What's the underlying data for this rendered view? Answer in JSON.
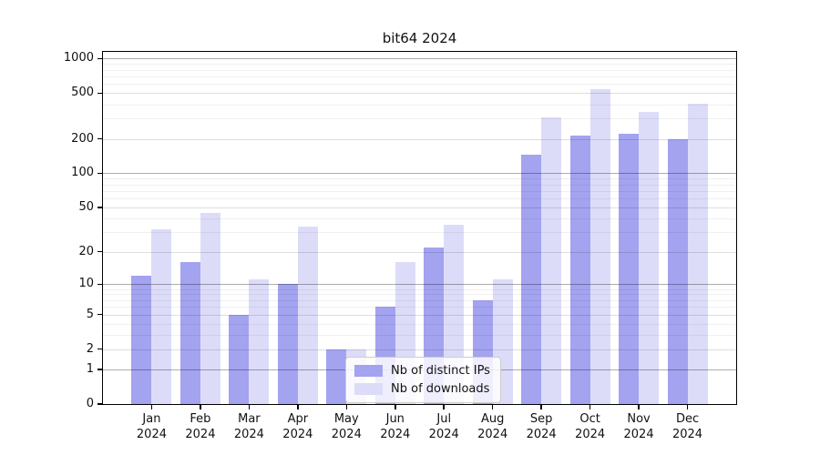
{
  "chart_data": {
    "type": "bar",
    "title": "bit64 2024",
    "categories": [
      "Jan 2024",
      "Feb 2024",
      "Mar 2024",
      "Apr 2024",
      "May 2024",
      "Jun 2024",
      "Jul 2024",
      "Aug 2024",
      "Sep 2024",
      "Oct 2024",
      "Nov 2024",
      "Dec 2024"
    ],
    "series": [
      {
        "name": "Nb of distinct IPs",
        "color": "#a3a3f0",
        "values": [
          12,
          16,
          5,
          10,
          2,
          6,
          22,
          7,
          146,
          215,
          221,
          200
        ]
      },
      {
        "name": "Nb of downloads",
        "color": "#dcdcf9",
        "values": [
          32,
          45,
          11,
          34,
          2,
          16,
          35,
          11,
          310,
          540,
          346,
          405
        ]
      }
    ],
    "xlabel": "",
    "ylabel": "",
    "yscale": "log1p",
    "ylim": [
      0,
      1250
    ],
    "yticks": [
      0,
      1,
      2,
      5,
      10,
      20,
      50,
      100,
      200,
      500,
      1000
    ],
    "ytick_decades": [
      1,
      10,
      100,
      1000
    ],
    "yminor_gridlines": [
      3,
      4,
      6,
      7,
      8,
      9,
      30,
      40,
      60,
      70,
      80,
      90,
      300,
      400,
      600,
      700,
      800,
      900
    ],
    "grid": "horizontal",
    "legend_position": "inside-bottom-center"
  }
}
